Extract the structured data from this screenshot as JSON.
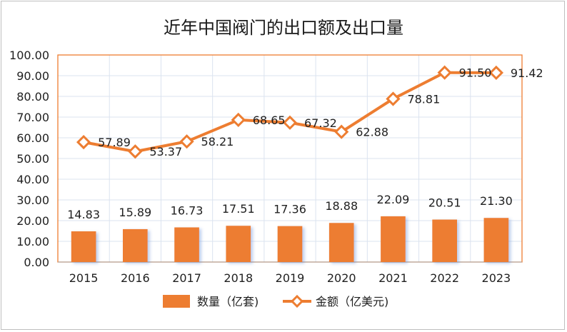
{
  "chart_data": {
    "type": "bar",
    "title": "近年中国阀门的出口额及出口量",
    "categories": [
      "2015",
      "2016",
      "2017",
      "2018",
      "2019",
      "2020",
      "2021",
      "2022",
      "2023"
    ],
    "ylim": [
      0,
      100
    ],
    "y_ticks": [
      "0.00",
      "10.00",
      "20.00",
      "30.00",
      "40.00",
      "50.00",
      "60.00",
      "70.00",
      "80.00",
      "90.00",
      "100.00"
    ],
    "grid": true,
    "legend_position": "bottom",
    "series": [
      {
        "name": "数量（亿套)",
        "type": "bar",
        "color": "#ed7d31",
        "values": [
          14.83,
          15.89,
          16.73,
          17.51,
          17.36,
          18.88,
          22.09,
          20.51,
          21.3
        ],
        "labels": [
          "14.83",
          "15.89",
          "16.73",
          "17.51",
          "17.36",
          "18.88",
          "22.09",
          "20.51",
          "21.30"
        ]
      },
      {
        "name": "金额（亿美元)",
        "type": "line",
        "color": "#ed7d31",
        "values": [
          57.89,
          53.37,
          58.21,
          68.65,
          67.32,
          62.88,
          78.81,
          91.5,
          91.42
        ],
        "labels": [
          "57.89",
          "53.37",
          "58.21",
          "68.65",
          "67.32",
          "62.88",
          "78.81",
          "91.50",
          "91.42"
        ]
      }
    ]
  }
}
